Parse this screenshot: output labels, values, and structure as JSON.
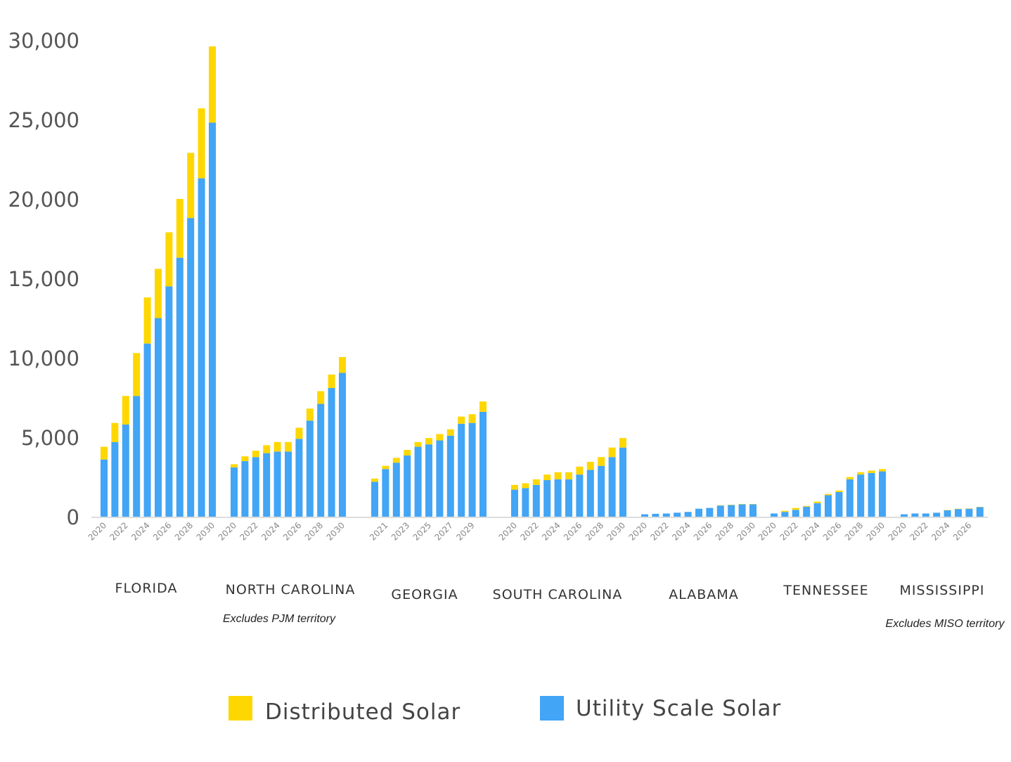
{
  "chart_data": {
    "type": "bar",
    "stacked": true,
    "title": "",
    "xlabel": "",
    "ylabel": "",
    "ylim": [
      0,
      30000
    ],
    "y_ticks": [
      "0",
      "5,000",
      "10,000",
      "15,000",
      "20,000",
      "25,000",
      "30,000"
    ],
    "y_tick_values": [
      0,
      5000,
      10000,
      15000,
      20000,
      25000,
      30000
    ],
    "grid": false,
    "legend_position": "bottom",
    "series_order": [
      "Utility Scale Solar",
      "Distributed Solar"
    ],
    "colors": {
      "Distributed Solar": "#FFD700",
      "Utility Scale Solar": "#42A5F5"
    },
    "legend": [
      {
        "name": "Distributed Solar",
        "color": "#FFD700"
      },
      {
        "name": "Utility Scale Solar",
        "color": "#42A5F5"
      }
    ],
    "groups": [
      {
        "name": "FLORIDA",
        "note": "",
        "years": [
          2020,
          2021,
          2022,
          2023,
          2024,
          2025,
          2026,
          2027,
          2028,
          2029,
          2030
        ],
        "tick_labels": [
          "2020",
          "2022",
          "2024",
          "2026",
          "2028",
          "2030"
        ],
        "utility": [
          3600,
          4700,
          5800,
          7600,
          10900,
          12500,
          14500,
          16300,
          18800,
          21300,
          24800
        ],
        "distributed": [
          800,
          1200,
          1800,
          2700,
          2900,
          3100,
          3400,
          3700,
          4100,
          4400,
          4800
        ]
      },
      {
        "name": "NORTH CAROLINA",
        "note": "Excludes PJM territory",
        "years": [
          2020,
          2021,
          2022,
          2023,
          2024,
          2025,
          2026,
          2027,
          2028,
          2029,
          2030
        ],
        "tick_labels": [
          "2020",
          "2022",
          "2024",
          "2026",
          "2028",
          "2030"
        ],
        "utility": [
          3100,
          3500,
          3750,
          4000,
          4100,
          4100,
          4900,
          6050,
          7100,
          8100,
          9050
        ],
        "distributed": [
          200,
          300,
          400,
          500,
          600,
          600,
          700,
          750,
          800,
          850,
          1000
        ]
      },
      {
        "name": "GEORGIA",
        "note": "",
        "years": [
          2020,
          2021,
          2022,
          2023,
          2024,
          2025,
          2026,
          2027,
          2028,
          2029,
          2030
        ],
        "tick_labels": [
          "2021",
          "2023",
          "2025",
          "2027",
          "2029"
        ],
        "utility": [
          2200,
          3000,
          3400,
          3850,
          4400,
          4550,
          4800,
          5100,
          5850,
          5900,
          6600
        ],
        "distributed": [
          200,
          200,
          300,
          350,
          300,
          400,
          400,
          400,
          450,
          550,
          650
        ]
      },
      {
        "name": "SOUTH CAROLINA",
        "note": "",
        "years": [
          2020,
          2021,
          2022,
          2023,
          2024,
          2025,
          2026,
          2027,
          2028,
          2029,
          2030
        ],
        "tick_labels": [
          "2020",
          "2022",
          "2024",
          "2026",
          "2028",
          "2030"
        ],
        "utility": [
          1700,
          1800,
          2000,
          2300,
          2350,
          2350,
          2650,
          2950,
          3200,
          3750,
          4350
        ],
        "distributed": [
          300,
          300,
          350,
          350,
          450,
          450,
          500,
          500,
          550,
          600,
          600
        ]
      },
      {
        "name": "ALABAMA",
        "note": "",
        "years": [
          2020,
          2021,
          2022,
          2023,
          2024,
          2025,
          2026,
          2027,
          2028,
          2029,
          2030
        ],
        "tick_labels": [
          "2020",
          "2022",
          "2024",
          "2026",
          "2028",
          "2030"
        ],
        "utility": [
          150,
          180,
          200,
          250,
          300,
          500,
          550,
          700,
          730,
          780,
          780
        ],
        "distributed": [
          0,
          0,
          0,
          0,
          0,
          0,
          0,
          20,
          20,
          20,
          20
        ]
      },
      {
        "name": "TENNESSEE",
        "note": "",
        "years": [
          2020,
          2021,
          2022,
          2023,
          2024,
          2025,
          2026,
          2027,
          2028,
          2029,
          2030
        ],
        "tick_labels": [
          "2020",
          "2022",
          "2024",
          "2026",
          "2028",
          "2030"
        ],
        "utility": [
          200,
          300,
          430,
          630,
          850,
          1350,
          1550,
          2350,
          2650,
          2750,
          2850
        ],
        "distributed": [
          0,
          70,
          120,
          50,
          100,
          80,
          100,
          150,
          150,
          150,
          150
        ]
      },
      {
        "name": "MISSISSIPPI",
        "note": "Excludes MISO territory",
        "years": [
          2020,
          2021,
          2022,
          2023,
          2024,
          2025,
          2026,
          2027
        ],
        "tick_labels": [
          "2020",
          "2022",
          "2024",
          "2026"
        ],
        "utility": [
          150,
          200,
          200,
          250,
          400,
          480,
          500,
          600
        ],
        "distributed": [
          0,
          0,
          0,
          0,
          20,
          20,
          20,
          20
        ]
      }
    ]
  }
}
